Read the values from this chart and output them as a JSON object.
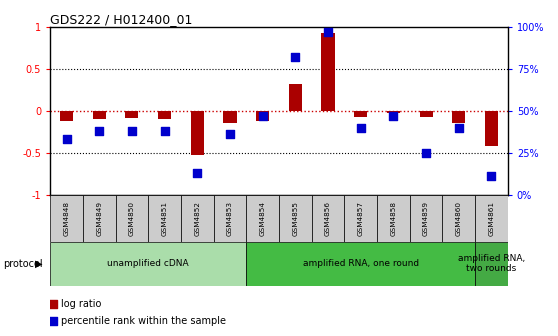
{
  "title": "GDS222 / H012400_01",
  "samples": [
    "GSM4848",
    "GSM4849",
    "GSM4850",
    "GSM4851",
    "GSM4852",
    "GSM4853",
    "GSM4854",
    "GSM4855",
    "GSM4856",
    "GSM4857",
    "GSM4858",
    "GSM4859",
    "GSM4860",
    "GSM4861"
  ],
  "log_ratio": [
    -0.12,
    -0.1,
    -0.09,
    -0.1,
    -0.52,
    -0.15,
    -0.12,
    0.32,
    0.93,
    -0.07,
    -0.03,
    -0.07,
    -0.14,
    -0.42
  ],
  "percentile": [
    33,
    38,
    38,
    38,
    13,
    36,
    47,
    82,
    97,
    40,
    47,
    25,
    40,
    11
  ],
  "protocols": [
    {
      "label": "unamplified cDNA",
      "start": 0,
      "end": 6,
      "color": "#AADDAA"
    },
    {
      "label": "amplified RNA, one round",
      "start": 6,
      "end": 13,
      "color": "#44BB44"
    },
    {
      "label": "amplified RNA,\ntwo rounds",
      "start": 13,
      "end": 14,
      "color": "#44AA44"
    }
  ],
  "bar_color": "#AA0000",
  "dot_color": "#0000CC",
  "ylim": [
    -1,
    1
  ],
  "hline_color": "#CC0000",
  "background": "white",
  "legend_log_ratio_label": "log ratio",
  "legend_percentile_label": "percentile rank within the sample",
  "protocol_label": "protocol",
  "left_ytick_labels": [
    "1",
    "0.5",
    "0",
    "-0.5",
    "-1"
  ],
  "left_ytick_vals": [
    1,
    0.5,
    0,
    -0.5,
    -1
  ],
  "right_ytick_labels": [
    "100%",
    "75%",
    "50%",
    "25%",
    "0%"
  ],
  "right_ytick_vals": [
    1,
    0.5,
    0,
    -0.5,
    -1
  ]
}
